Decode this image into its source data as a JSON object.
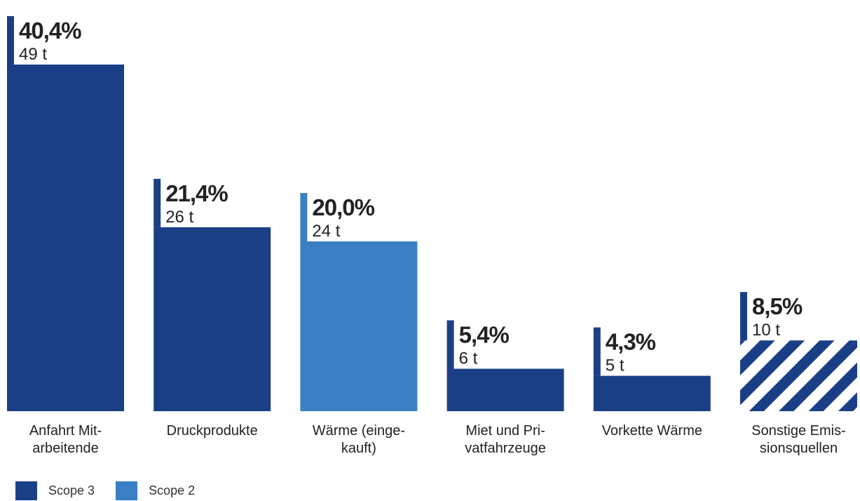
{
  "chart_data": {
    "type": "bar",
    "title": "",
    "xlabel": "",
    "ylabel": "",
    "ylim": [
      0,
      49
    ],
    "grid": false,
    "legend_position": "bottom-left",
    "categories": [
      [
        "Anfahrt Mit-",
        "arbeitende"
      ],
      [
        "Druckprodukte"
      ],
      [
        "Wärme (einge-",
        "kauft)"
      ],
      [
        "Miet und Pri-",
        "vatfahrzeuge"
      ],
      [
        "Vorkette Wärme"
      ],
      [
        "Sonstige Emis-",
        "sionsquellen"
      ]
    ],
    "values": [
      49,
      26,
      24,
      6,
      5,
      10
    ],
    "percent_labels": [
      "40,4%",
      "21,4%",
      "20,0%",
      "5,4%",
      "4,3%",
      "8,5%"
    ],
    "value_labels": [
      "49 t",
      "26 t",
      "24 t",
      "6 t",
      "5 t",
      "10 t"
    ],
    "scope": [
      "Scope 3",
      "Scope 3",
      "Scope 2",
      "Scope 3",
      "Scope 3",
      "Scope 3"
    ],
    "hatched": [
      false,
      false,
      false,
      false,
      false,
      true
    ],
    "legend": [
      {
        "name": "Scope 3",
        "color": "#1b3f87"
      },
      {
        "name": "Scope 2",
        "color": "#3a7fc4"
      }
    ]
  },
  "colors": {
    "scope3": "#1b3f87",
    "scope2": "#3a7fc4"
  }
}
